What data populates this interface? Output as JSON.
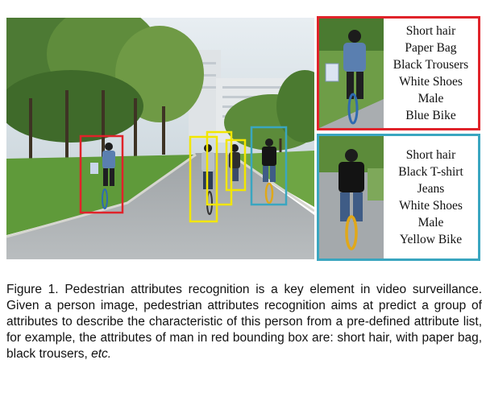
{
  "panels": {
    "red": {
      "border_color": "#e0232a",
      "attributes": [
        "Short hair",
        "Paper Bag",
        "Black Trousers",
        "White Shoes",
        "Male",
        "Blue Bike"
      ]
    },
    "cyan": {
      "border_color": "#3aa6c0",
      "attributes": [
        "Short hair",
        "Black T-shirt",
        "Jeans",
        "White Shoes",
        "Male",
        "Yellow Bike"
      ]
    }
  },
  "scene": {
    "box_colors": {
      "red": "#e0232a",
      "yellow": "#f2e600",
      "cyan": "#3aa6c0"
    }
  },
  "caption": {
    "text": "Figure 1. Pedestrian attributes recognition is a key element in video surveillance. Given a person image, pedestrian attributes recognition aims at predict a group of attributes to describe the characteristic of this person from a pre-defined attribute list, for example, the attributes of man in red bounding box are: short hair, with paper bag, black trousers,",
    "emphasis": "etc."
  }
}
